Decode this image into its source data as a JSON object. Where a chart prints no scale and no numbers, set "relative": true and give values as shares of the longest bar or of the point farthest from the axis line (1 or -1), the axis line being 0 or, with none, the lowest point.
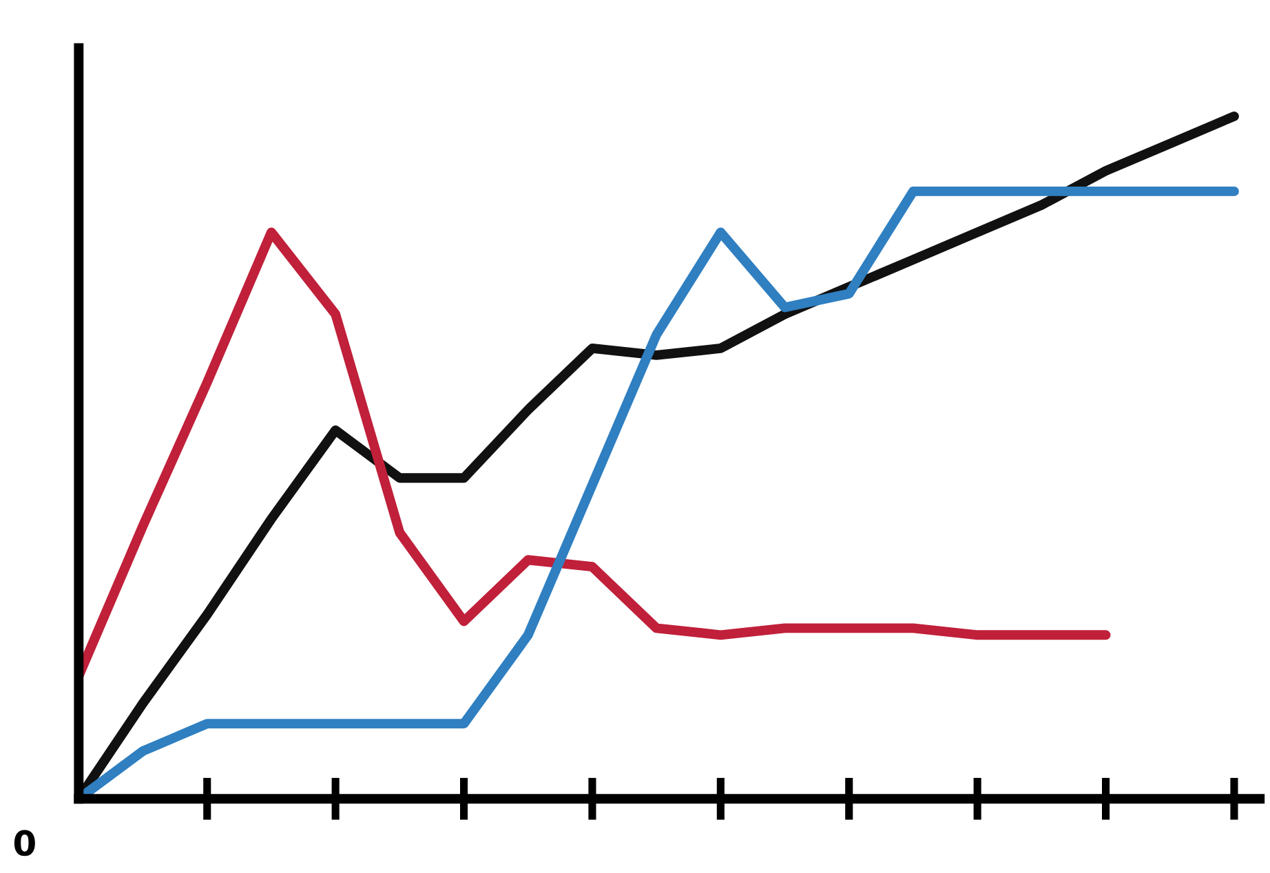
{
  "chart_data": {
    "type": "line",
    "relative": true,
    "categories": [
      null,
      null,
      null,
      null,
      null,
      null,
      null,
      null,
      null,
      null,
      null,
      null,
      null,
      null,
      null,
      null,
      null,
      null,
      null
    ],
    "series": [
      {
        "color": "#111111",
        "values": [
          0,
          0.14,
          0.27,
          0.41,
          0.54,
          0.47,
          0.47,
          0.57,
          0.66,
          0.65,
          0.66,
          0.71,
          0.75,
          0.79,
          0.83,
          0.87,
          0.92,
          0.96,
          1.0
        ]
      },
      {
        "color": "#c0203a",
        "values": [
          0.18,
          0.4,
          0.61,
          0.83,
          0.71,
          0.39,
          0.26,
          0.35,
          0.34,
          0.25,
          0.24,
          0.25,
          0.25,
          0.25,
          0.24,
          0.24,
          0.24,
          null,
          null
        ]
      },
      {
        "color": "#2f7fc1",
        "values": [
          0,
          0.07,
          0.11,
          0.11,
          0.11,
          0.11,
          0.11,
          0.24,
          0.46,
          0.68,
          0.83,
          0.72,
          0.74,
          0.89,
          0.89,
          0.89,
          0.89,
          0.89,
          0.89
        ]
      }
    ],
    "annotations": [
      "0"
    ],
    "marker": "none",
    "line_style": "solid"
  }
}
